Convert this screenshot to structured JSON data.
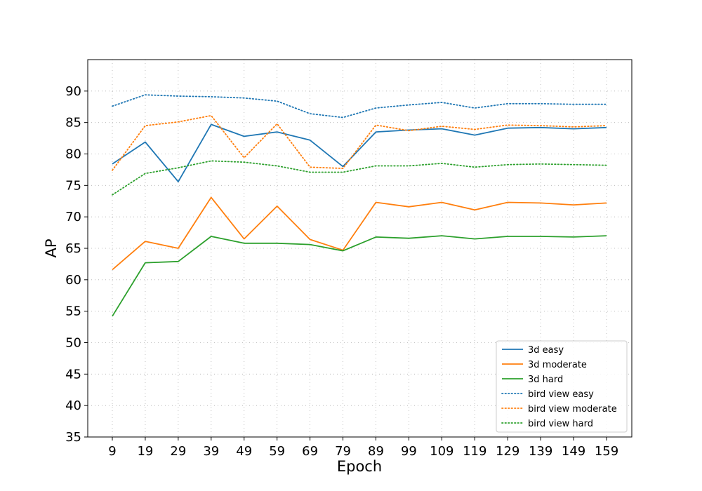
{
  "chart_data": {
    "type": "line",
    "title": "",
    "xlabel": "Epoch",
    "ylabel": "AP",
    "x": [
      9,
      19,
      29,
      39,
      49,
      59,
      69,
      79,
      89,
      99,
      109,
      119,
      129,
      139,
      149,
      159
    ],
    "ylim": [
      35,
      95
    ],
    "yticks": [
      35,
      40,
      45,
      50,
      55,
      60,
      65,
      70,
      75,
      80,
      85,
      90
    ],
    "grid": true,
    "legend_position": "lower-right",
    "series": [
      {
        "name": "3d easy",
        "style": "solid",
        "color": "#1f77b4",
        "values": [
          78.4,
          81.9,
          75.6,
          84.7,
          82.8,
          83.5,
          82.2,
          78.0,
          83.5,
          83.8,
          84.0,
          83.0,
          84.1,
          84.2,
          84.0,
          84.2
        ]
      },
      {
        "name": "3d moderate",
        "style": "solid",
        "color": "#ff7f0e",
        "values": [
          61.6,
          66.1,
          65.0,
          73.1,
          66.5,
          71.7,
          66.4,
          64.7,
          72.3,
          71.6,
          72.3,
          71.1,
          72.3,
          72.2,
          71.9,
          72.2
        ]
      },
      {
        "name": "3d hard",
        "style": "solid",
        "color": "#2ca02c",
        "values": [
          54.2,
          62.7,
          62.9,
          66.9,
          65.8,
          65.8,
          65.6,
          64.6,
          66.8,
          66.6,
          67.0,
          66.5,
          66.9,
          66.9,
          66.8,
          67.0
        ]
      },
      {
        "name": "bird view easy",
        "style": "dotted",
        "color": "#1f77b4",
        "values": [
          87.6,
          89.4,
          89.2,
          89.1,
          88.9,
          88.4,
          86.4,
          85.8,
          87.3,
          87.8,
          88.2,
          87.3,
          88.0,
          88.0,
          87.9,
          87.9
        ]
      },
      {
        "name": "bird view moderate",
        "style": "dotted",
        "color": "#ff7f0e",
        "values": [
          77.4,
          84.5,
          85.1,
          86.1,
          79.4,
          84.8,
          77.9,
          77.7,
          84.6,
          83.7,
          84.4,
          83.9,
          84.6,
          84.5,
          84.3,
          84.5
        ]
      },
      {
        "name": "bird view hard",
        "style": "dotted",
        "color": "#2ca02c",
        "values": [
          73.5,
          76.9,
          77.8,
          78.9,
          78.7,
          78.1,
          77.1,
          77.1,
          78.1,
          78.1,
          78.5,
          77.9,
          78.3,
          78.4,
          78.3,
          78.2
        ]
      }
    ]
  }
}
